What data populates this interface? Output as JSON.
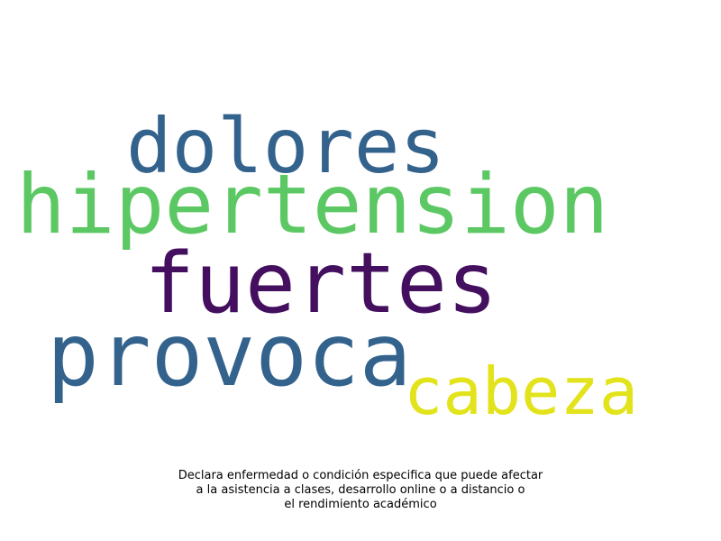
{
  "word_cloud": {
    "words": [
      {
        "text": "dolores",
        "color": "#33638d"
      },
      {
        "text": "hipertension",
        "color": "#5cc863"
      },
      {
        "text": "fuertes",
        "color": "#440f5f"
      },
      {
        "text": "provoca",
        "color": "#33638d"
      },
      {
        "text": "cabeza",
        "color": "#e2e31a"
      }
    ]
  },
  "caption": {
    "lines": [
      "Declara enfermedad o condición especifica que puede afectar",
      "a la asistencia a clases, desarrollo online o a distancio o",
      "el rendimiento académico"
    ]
  }
}
